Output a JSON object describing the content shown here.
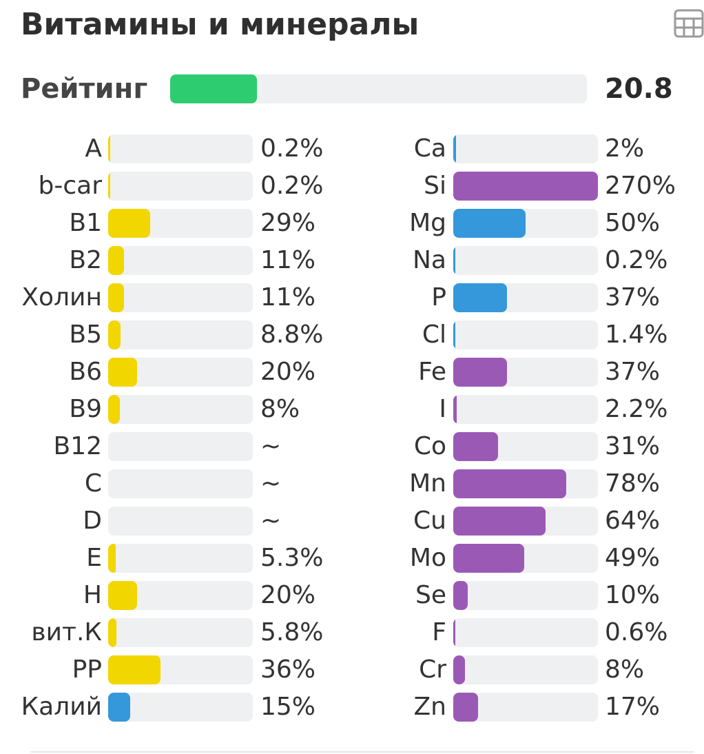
{
  "header": {
    "title": "Витамины и минералы",
    "table_icon": "table-grid-icon"
  },
  "rating": {
    "label": "Рейтинг",
    "value": "20.8",
    "fill_fraction": 0.208,
    "color": "#2ecc71"
  },
  "colors": {
    "vitamin": "#f2d600",
    "mineral_blue": "#3498db",
    "mineral_purple": "#9b59b6",
    "track": "#eff0f2"
  },
  "vitamins": [
    {
      "label": "A",
      "value": "0.2%",
      "percent": 0.2,
      "color": "#f2d600"
    },
    {
      "label": "b-car",
      "value": "0.2%",
      "percent": 0.2,
      "color": "#f2d600"
    },
    {
      "label": "B1",
      "value": "29%",
      "percent": 29,
      "color": "#f2d600"
    },
    {
      "label": "B2",
      "value": "11%",
      "percent": 11,
      "color": "#f2d600"
    },
    {
      "label": "Холин",
      "value": "11%",
      "percent": 11,
      "color": "#f2d600"
    },
    {
      "label": "B5",
      "value": "8.8%",
      "percent": 8.8,
      "color": "#f2d600"
    },
    {
      "label": "B6",
      "value": "20%",
      "percent": 20,
      "color": "#f2d600"
    },
    {
      "label": "B9",
      "value": "8%",
      "percent": 8,
      "color": "#f2d600"
    },
    {
      "label": "B12",
      "value": "~",
      "percent": 0,
      "color": "#f2d600"
    },
    {
      "label": "C",
      "value": "~",
      "percent": 0,
      "color": "#f2d600"
    },
    {
      "label": "D",
      "value": "~",
      "percent": 0,
      "color": "#f2d600"
    },
    {
      "label": "E",
      "value": "5.3%",
      "percent": 5.3,
      "color": "#f2d600"
    },
    {
      "label": "H",
      "value": "20%",
      "percent": 20,
      "color": "#f2d600"
    },
    {
      "label": "вит.К",
      "value": "5.8%",
      "percent": 5.8,
      "color": "#f2d600"
    },
    {
      "label": "PP",
      "value": "36%",
      "percent": 36,
      "color": "#f2d600"
    },
    {
      "label": "Калий",
      "value": "15%",
      "percent": 15,
      "color": "#3498db"
    }
  ],
  "minerals": [
    {
      "label": "Ca",
      "value": "2%",
      "percent": 2,
      "color": "#3498db"
    },
    {
      "label": "Si",
      "value": "270%",
      "percent": 270,
      "color": "#9b59b6"
    },
    {
      "label": "Mg",
      "value": "50%",
      "percent": 50,
      "color": "#3498db"
    },
    {
      "label": "Na",
      "value": "0.2%",
      "percent": 0.2,
      "color": "#3498db"
    },
    {
      "label": "P",
      "value": "37%",
      "percent": 37,
      "color": "#3498db"
    },
    {
      "label": "Cl",
      "value": "1.4%",
      "percent": 1.4,
      "color": "#3498db"
    },
    {
      "label": "Fe",
      "value": "37%",
      "percent": 37,
      "color": "#9b59b6"
    },
    {
      "label": "I",
      "value": "2.2%",
      "percent": 2.2,
      "color": "#9b59b6"
    },
    {
      "label": "Co",
      "value": "31%",
      "percent": 31,
      "color": "#9b59b6"
    },
    {
      "label": "Mn",
      "value": "78%",
      "percent": 78,
      "color": "#9b59b6"
    },
    {
      "label": "Cu",
      "value": "64%",
      "percent": 64,
      "color": "#9b59b6"
    },
    {
      "label": "Mo",
      "value": "49%",
      "percent": 49,
      "color": "#9b59b6"
    },
    {
      "label": "Se",
      "value": "10%",
      "percent": 10,
      "color": "#9b59b6"
    },
    {
      "label": "F",
      "value": "0.6%",
      "percent": 0.6,
      "color": "#9b59b6"
    },
    {
      "label": "Cr",
      "value": "8%",
      "percent": 8,
      "color": "#9b59b6"
    },
    {
      "label": "Zn",
      "value": "17%",
      "percent": 17,
      "color": "#9b59b6"
    }
  ]
}
